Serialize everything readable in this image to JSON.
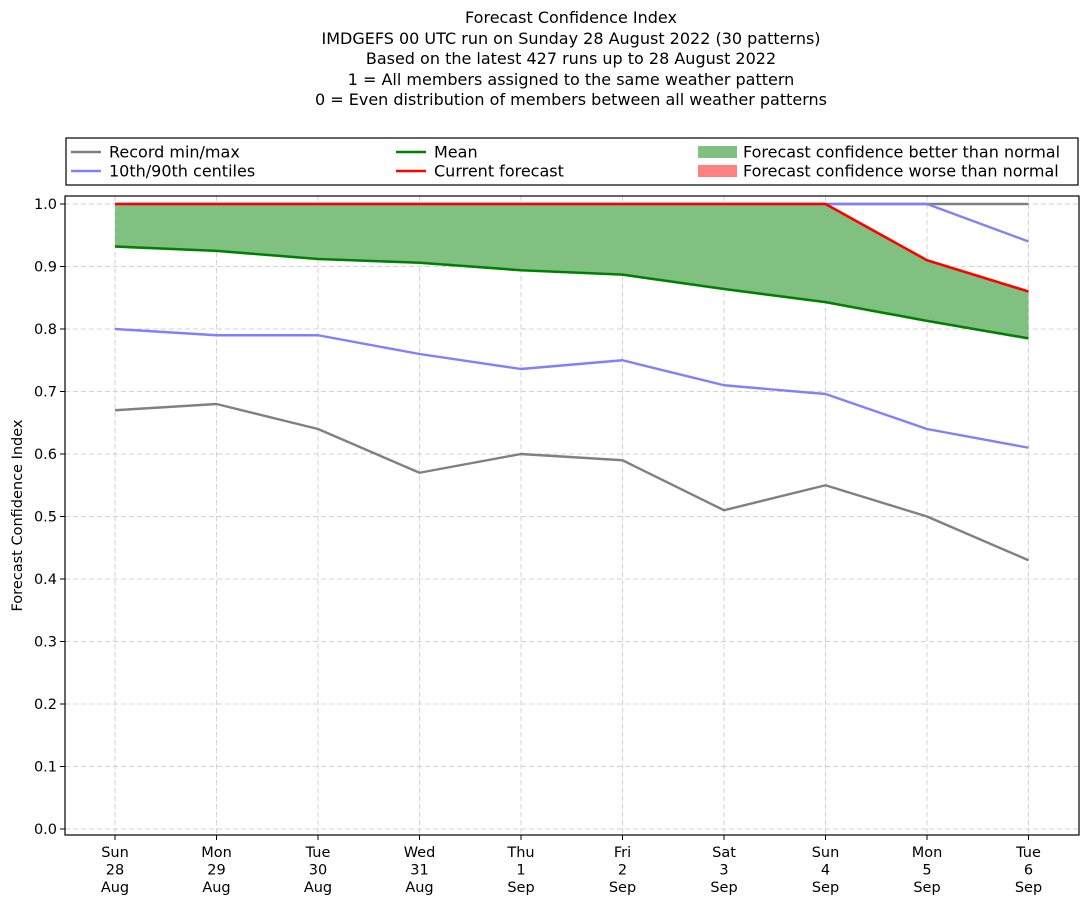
{
  "chart_data": {
    "type": "line",
    "title_lines": [
      "Forecast Confidence Index",
      "IMDGEFS 00 UTC run on Sunday 28 August 2022 (30 patterns)",
      "Based on the latest 427 runs up to 28 August 2022",
      "1 = All members assigned to the same weather pattern",
      "0 = Even distribution of members between all weather patterns"
    ],
    "ylabel": "Forecast Confidence Index",
    "xlabel": "",
    "ylim": [
      0.0,
      1.0
    ],
    "yticks": [
      "0.0",
      "0.1",
      "0.2",
      "0.3",
      "0.4",
      "0.5",
      "0.6",
      "0.7",
      "0.8",
      "0.9",
      "1.0"
    ],
    "grid": true,
    "legend_position": "top",
    "categories": [
      [
        "Sun",
        "28",
        "Aug"
      ],
      [
        "Mon",
        "29",
        "Aug"
      ],
      [
        "Tue",
        "30",
        "Aug"
      ],
      [
        "Wed",
        "31",
        "Aug"
      ],
      [
        "Thu",
        "1",
        "Sep"
      ],
      [
        "Fri",
        "2",
        "Sep"
      ],
      [
        "Sat",
        "3",
        "Sep"
      ],
      [
        "Sun",
        "4",
        "Sep"
      ],
      [
        "Mon",
        "5",
        "Sep"
      ],
      [
        "Tue",
        "6",
        "Sep"
      ]
    ],
    "series": {
      "record_min": [
        0.67,
        0.68,
        0.64,
        0.57,
        0.6,
        0.59,
        0.51,
        0.55,
        0.5,
        0.43
      ],
      "record_max": [
        1.0,
        1.0,
        1.0,
        1.0,
        1.0,
        1.0,
        1.0,
        1.0,
        1.0,
        1.0
      ],
      "p10": [
        0.8,
        0.79,
        0.79,
        0.76,
        0.736,
        0.75,
        0.71,
        0.696,
        0.64,
        0.61
      ],
      "p90": [
        1.0,
        1.0,
        1.0,
        1.0,
        1.0,
        1.0,
        1.0,
        1.0,
        1.0,
        0.94
      ],
      "mean": [
        0.932,
        0.925,
        0.912,
        0.906,
        0.894,
        0.887,
        0.864,
        0.843,
        0.813,
        0.785
      ],
      "current": [
        1.0,
        1.0,
        1.0,
        1.0,
        1.0,
        1.0,
        1.0,
        1.0,
        0.91,
        0.86
      ]
    },
    "legend": {
      "record": "Record min/max",
      "centiles": "10th/90th centiles",
      "mean": "Mean",
      "current": "Current forecast",
      "better": "Forecast confidence better than normal",
      "worse": "Forecast confidence worse than normal"
    },
    "colors": {
      "record": "#808080",
      "centiles": "#8080ff",
      "mean": "#008000",
      "current": "#ff0000",
      "better_fill": "#80c080",
      "worse_fill": "#ff8080",
      "overlap": "#4b4bb4",
      "grid": "#d3d3d3"
    }
  }
}
